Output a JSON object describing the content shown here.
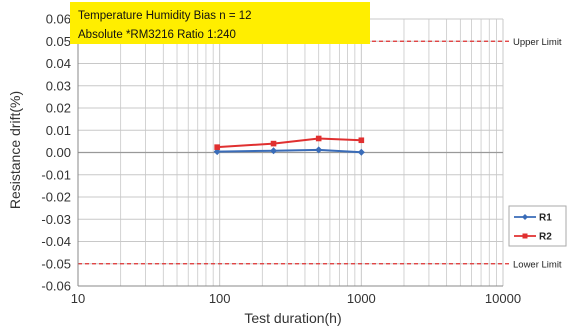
{
  "chart_data": {
    "type": "line",
    "title_lines": [
      "Temperature Humidity Bias  n = 12",
      "Absolute *RM3216 Ratio 1:240"
    ],
    "xlabel": "Test duration(h)",
    "ylabel": "Resistance drift(%)",
    "x_scale": "log",
    "xlim": [
      10,
      10000
    ],
    "ylim": [
      -0.06,
      0.06
    ],
    "x_ticks": [
      10,
      100,
      1000,
      10000
    ],
    "x_tick_labels": [
      "10",
      "100",
      "1000",
      "10000"
    ],
    "y_ticks": [
      0.06,
      0.05,
      0.04,
      0.03,
      0.02,
      0.01,
      0.0,
      -0.01,
      -0.02,
      -0.03,
      -0.04,
      -0.05,
      -0.06
    ],
    "y_tick_labels": [
      "0.06",
      "0.05",
      "0.04",
      "0.03",
      "0.02",
      "0.01",
      "0.00",
      "-0.01",
      "-0.02",
      "-0.03",
      "-0.04",
      "-0.05",
      "-0.06"
    ],
    "grid": true,
    "legend_position": "right",
    "series": [
      {
        "name": "R1",
        "color": "#3a6cb8",
        "marker": "diamond",
        "x": [
          96,
          240,
          500,
          1000
        ],
        "y": [
          0.0004,
          0.0008,
          0.0012,
          0.0001
        ],
        "error": [
          0.0008,
          0.0008,
          0.001,
          0.001
        ]
      },
      {
        "name": "R2",
        "color": "#e03030",
        "marker": "square",
        "x": [
          96,
          240,
          500,
          1000
        ],
        "y": [
          0.0024,
          0.004,
          0.0063,
          0.0055
        ],
        "error": [
          0.0,
          0.0,
          0.0,
          0.0
        ]
      }
    ],
    "limits": [
      {
        "label": "Upper Limit",
        "value": 0.05,
        "color": "#e03030"
      },
      {
        "label": "Lower Limit",
        "value": -0.05,
        "color": "#e03030"
      }
    ]
  },
  "colors": {
    "title_box": "#ffee00",
    "grid": "#c8c8c8",
    "zero_line": "#999999"
  }
}
